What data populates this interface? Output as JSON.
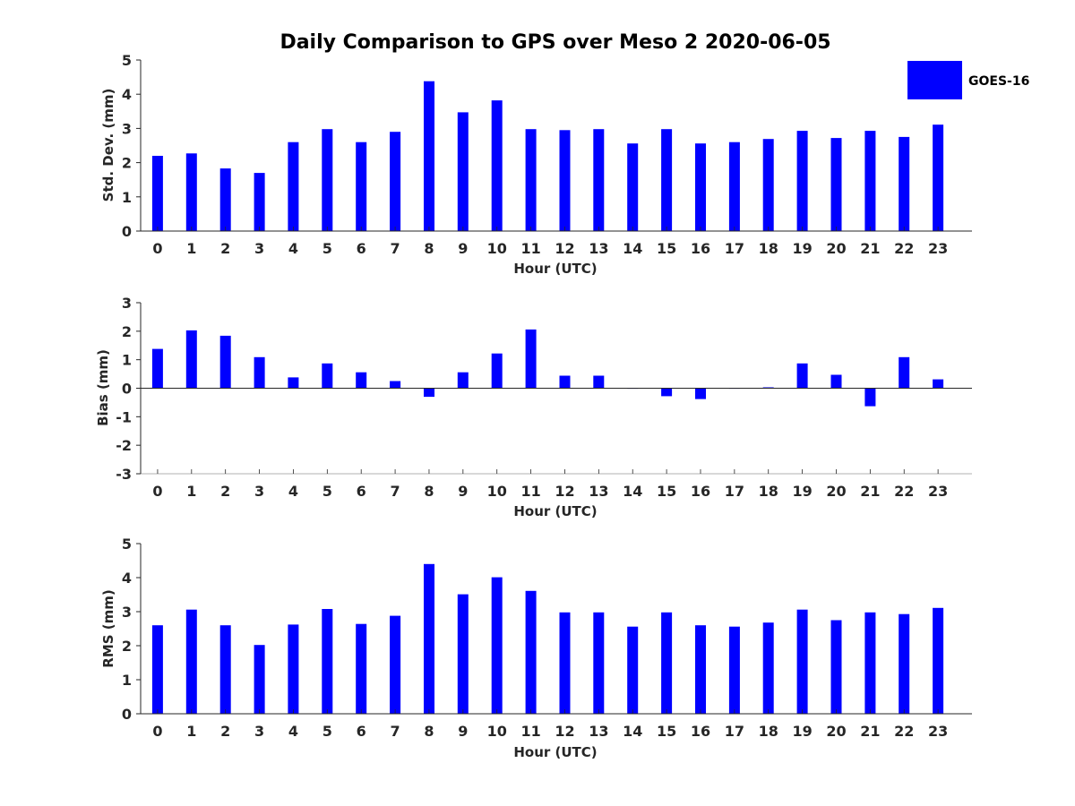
{
  "title": "Daily Comparison to GPS over Meso 2 2020-06-05",
  "legend": {
    "label": "GOES-16",
    "color": "#0000FF",
    "placement": "top-right"
  },
  "chart_data": [
    {
      "type": "bar",
      "title": "Daily Comparison to GPS over Meso 2 2020-06-05",
      "xlabel": "Hour (UTC)",
      "ylabel": "Std. Dev. (mm)",
      "ylim": [
        0,
        5
      ],
      "yticks": [
        "0",
        "1",
        "2",
        "3",
        "4",
        "5"
      ],
      "categories": [
        "0",
        "1",
        "2",
        "3",
        "4",
        "5",
        "6",
        "7",
        "8",
        "9",
        "10",
        "11",
        "12",
        "13",
        "14",
        "15",
        "16",
        "17",
        "18",
        "19",
        "20",
        "21",
        "22",
        "23"
      ],
      "series": [
        {
          "name": "GOES-16",
          "color": "#0000FF",
          "values": [
            2.2,
            2.27,
            1.83,
            1.7,
            2.6,
            2.98,
            2.6,
            2.9,
            4.38,
            3.47,
            3.82,
            2.98,
            2.95,
            2.98,
            2.56,
            2.98,
            2.56,
            2.6,
            2.69,
            2.93,
            2.72,
            2.93,
            2.75,
            3.11
          ]
        }
      ]
    },
    {
      "type": "bar",
      "xlabel": "Hour (UTC)",
      "ylabel": "Bias (mm)",
      "ylim": [
        -3,
        3
      ],
      "yticks": [
        "-3",
        "-2",
        "-1",
        "0",
        "1",
        "2",
        "3"
      ],
      "categories": [
        "0",
        "1",
        "2",
        "3",
        "4",
        "5",
        "6",
        "7",
        "8",
        "9",
        "10",
        "11",
        "12",
        "13",
        "14",
        "15",
        "16",
        "17",
        "18",
        "19",
        "20",
        "21",
        "22",
        "23"
      ],
      "series": [
        {
          "name": "GOES-16",
          "color": "#0000FF",
          "values": [
            1.38,
            2.03,
            1.84,
            1.09,
            0.38,
            0.87,
            0.56,
            0.25,
            -0.3,
            0.56,
            1.22,
            2.06,
            0.44,
            0.44,
            0.0,
            -0.28,
            -0.38,
            0.0,
            0.03,
            0.87,
            0.47,
            -0.63,
            1.09,
            0.31
          ]
        }
      ]
    },
    {
      "type": "bar",
      "xlabel": "Hour (UTC)",
      "ylabel": "RMS (mm)",
      "ylim": [
        0,
        5
      ],
      "yticks": [
        "0",
        "1",
        "2",
        "3",
        "4",
        "5"
      ],
      "categories": [
        "0",
        "1",
        "2",
        "3",
        "4",
        "5",
        "6",
        "7",
        "8",
        "9",
        "10",
        "11",
        "12",
        "13",
        "14",
        "15",
        "16",
        "17",
        "18",
        "19",
        "20",
        "21",
        "22",
        "23"
      ],
      "series": [
        {
          "name": "GOES-16",
          "color": "#0000FF",
          "values": [
            2.6,
            3.06,
            2.6,
            2.02,
            2.62,
            3.08,
            2.64,
            2.88,
            4.4,
            3.51,
            4.01,
            3.61,
            2.98,
            2.98,
            2.56,
            2.98,
            2.6,
            2.56,
            2.68,
            3.06,
            2.75,
            2.98,
            2.93,
            3.11
          ]
        }
      ]
    }
  ]
}
